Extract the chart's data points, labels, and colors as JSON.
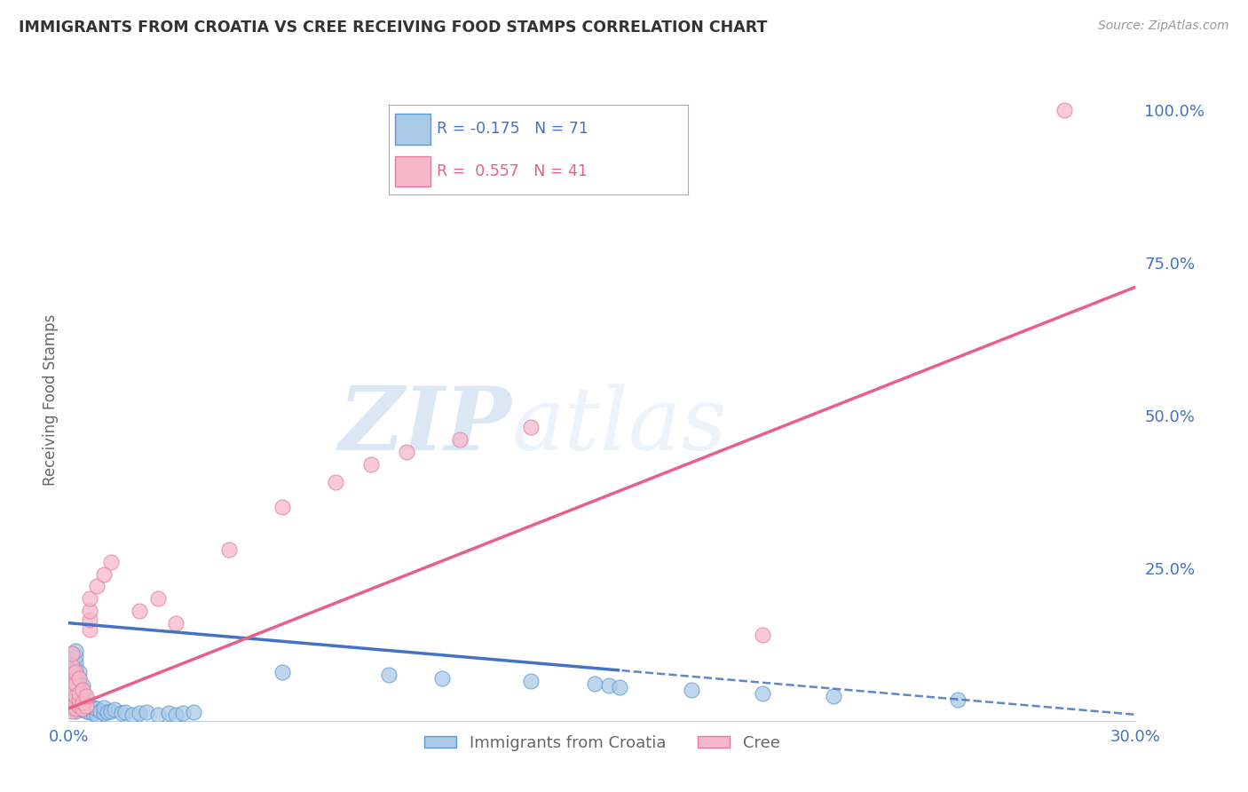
{
  "title": "IMMIGRANTS FROM CROATIA VS CREE RECEIVING FOOD STAMPS CORRELATION CHART",
  "source": "Source: ZipAtlas.com",
  "ylabel": "Receiving Food Stamps",
  "xlim": [
    0.0,
    0.3
  ],
  "ylim": [
    0.0,
    1.05
  ],
  "xticks": [
    0.0,
    0.05,
    0.1,
    0.15,
    0.2,
    0.25,
    0.3
  ],
  "xticklabels": [
    "0.0%",
    "",
    "",
    "",
    "",
    "",
    "30.0%"
  ],
  "yticks_right": [
    0.0,
    0.25,
    0.5,
    0.75,
    1.0
  ],
  "yticklabels_right": [
    "",
    "25.0%",
    "50.0%",
    "75.0%",
    "100.0%"
  ],
  "croatia_color": "#aac9e8",
  "cree_color": "#f7b8cb",
  "croatia_edge_color": "#5b9bd5",
  "cree_edge_color": "#e87aa0",
  "croatia_line_color": "#4472c4",
  "cree_line_color": "#e8608a",
  "watermark_zip": "ZIP",
  "watermark_atlas": "atlas",
  "legend_R_croatia": "R = -0.175",
  "legend_N_croatia": "N = 71",
  "legend_R_cree": "R =  0.557",
  "legend_N_cree": "N = 41",
  "croatia_scatter_x": [
    0.001,
    0.001,
    0.001,
    0.001,
    0.001,
    0.001,
    0.001,
    0.001,
    0.001,
    0.001,
    0.001,
    0.001,
    0.002,
    0.002,
    0.002,
    0.002,
    0.002,
    0.002,
    0.002,
    0.002,
    0.002,
    0.002,
    0.002,
    0.003,
    0.003,
    0.003,
    0.003,
    0.003,
    0.003,
    0.003,
    0.004,
    0.004,
    0.004,
    0.004,
    0.004,
    0.005,
    0.005,
    0.005,
    0.006,
    0.006,
    0.007,
    0.007,
    0.008,
    0.008,
    0.009,
    0.01,
    0.01,
    0.011,
    0.012,
    0.013,
    0.015,
    0.016,
    0.018,
    0.02,
    0.022,
    0.025,
    0.028,
    0.03,
    0.032,
    0.035,
    0.06,
    0.09,
    0.105,
    0.13,
    0.148,
    0.152,
    0.155,
    0.175,
    0.195,
    0.215,
    0.25
  ],
  "croatia_scatter_y": [
    0.02,
    0.025,
    0.03,
    0.035,
    0.04,
    0.05,
    0.06,
    0.07,
    0.08,
    0.09,
    0.1,
    0.11,
    0.015,
    0.025,
    0.035,
    0.045,
    0.055,
    0.065,
    0.075,
    0.085,
    0.095,
    0.105,
    0.115,
    0.02,
    0.03,
    0.04,
    0.05,
    0.06,
    0.07,
    0.08,
    0.018,
    0.028,
    0.038,
    0.048,
    0.058,
    0.016,
    0.026,
    0.036,
    0.014,
    0.024,
    0.012,
    0.022,
    0.01,
    0.02,
    0.015,
    0.012,
    0.022,
    0.014,
    0.016,
    0.018,
    0.012,
    0.014,
    0.01,
    0.012,
    0.014,
    0.01,
    0.012,
    0.01,
    0.012,
    0.014,
    0.08,
    0.075,
    0.07,
    0.065,
    0.06,
    0.058,
    0.055,
    0.05,
    0.045,
    0.04,
    0.035
  ],
  "cree_scatter_x": [
    0.001,
    0.001,
    0.001,
    0.001,
    0.001,
    0.001,
    0.001,
    0.001,
    0.002,
    0.002,
    0.002,
    0.002,
    0.002,
    0.003,
    0.003,
    0.003,
    0.003,
    0.004,
    0.004,
    0.004,
    0.005,
    0.005,
    0.006,
    0.006,
    0.006,
    0.006,
    0.008,
    0.01,
    0.012,
    0.02,
    0.025,
    0.03,
    0.045,
    0.06,
    0.075,
    0.085,
    0.095,
    0.11,
    0.13,
    0.195,
    0.28
  ],
  "cree_scatter_y": [
    0.015,
    0.025,
    0.035,
    0.045,
    0.055,
    0.065,
    0.09,
    0.11,
    0.02,
    0.03,
    0.04,
    0.06,
    0.08,
    0.025,
    0.035,
    0.045,
    0.07,
    0.02,
    0.03,
    0.05,
    0.025,
    0.04,
    0.15,
    0.165,
    0.18,
    0.2,
    0.22,
    0.24,
    0.26,
    0.18,
    0.2,
    0.16,
    0.28,
    0.35,
    0.39,
    0.42,
    0.44,
    0.46,
    0.48,
    0.14,
    1.0
  ],
  "bg_color": "#ffffff",
  "grid_color": "#cccccc",
  "title_color": "#333333",
  "axis_label_color": "#666666",
  "right_tick_color": "#4472c4",
  "bottom_tick_color": "#4472c4",
  "croatia_trend": [
    0.16,
    -0.5
  ],
  "cree_trend": [
    0.02,
    2.3
  ]
}
